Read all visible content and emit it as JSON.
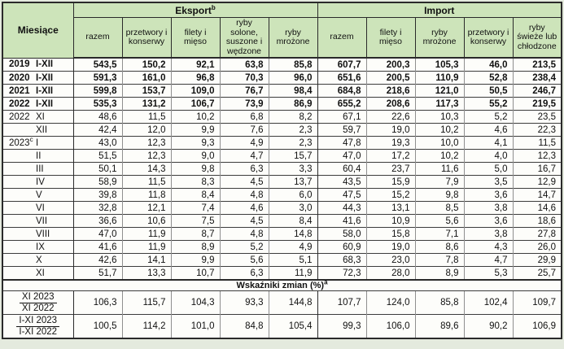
{
  "header": {
    "months_label": "Miesiące",
    "export_label": "Eksport",
    "export_sup": "b",
    "import_label": "Import",
    "export_cols": [
      "razem",
      "przetwory i konserwy",
      "filety i mięso",
      "ryby solone, suszone i wędzone",
      "ryby mrożone"
    ],
    "import_cols": [
      "razem",
      "filety i mięso",
      "ryby mrożone",
      "przetwory i konserwy",
      "ryby świeże lub chłodzone"
    ]
  },
  "rows": [
    {
      "year": "2019",
      "month": "I-XII",
      "bold": true,
      "values": [
        "543,5",
        "150,2",
        "92,1",
        "63,8",
        "85,8",
        "607,7",
        "200,3",
        "105,3",
        "46,0",
        "213,5"
      ]
    },
    {
      "year": "2020",
      "month": "I-XII",
      "bold": true,
      "values": [
        "591,3",
        "161,0",
        "96,8",
        "70,3",
        "96,0",
        "651,6",
        "200,5",
        "110,9",
        "52,8",
        "238,4"
      ]
    },
    {
      "year": "2021",
      "month": "I-XII",
      "bold": true,
      "values": [
        "599,8",
        "153,7",
        "109,0",
        "76,7",
        "98,4",
        "684,8",
        "218,6",
        "121,0",
        "50,5",
        "246,7"
      ]
    },
    {
      "year": "2022",
      "month": "I-XII",
      "bold": true,
      "values": [
        "535,3",
        "131,2",
        "106,7",
        "73,9",
        "86,9",
        "655,2",
        "208,6",
        "117,3",
        "55,2",
        "219,5"
      ]
    },
    {
      "year": "2022",
      "month": "XI",
      "bold": false,
      "values": [
        "48,6",
        "11,5",
        "10,2",
        "6,8",
        "8,2",
        "67,1",
        "22,6",
        "10,3",
        "5,2",
        "23,5"
      ]
    },
    {
      "year": "",
      "month": "XII",
      "bold": false,
      "values": [
        "42,4",
        "12,0",
        "9,9",
        "7,6",
        "2,3",
        "59,7",
        "19,0",
        "10,2",
        "4,6",
        "22,3"
      ]
    },
    {
      "year": "2023",
      "year_sup": "c",
      "month": "I",
      "bold": false,
      "values": [
        "43,0",
        "12,3",
        "9,3",
        "4,9",
        "2,3",
        "47,8",
        "19,3",
        "10,0",
        "4,1",
        "11,5"
      ]
    },
    {
      "year": "",
      "month": "II",
      "bold": false,
      "values": [
        "51,5",
        "12,3",
        "9,0",
        "4,7",
        "15,7",
        "47,0",
        "17,2",
        "10,2",
        "4,0",
        "12,3"
      ]
    },
    {
      "year": "",
      "month": "III",
      "bold": false,
      "values": [
        "50,1",
        "14,3",
        "9,8",
        "6,3",
        "3,3",
        "60,4",
        "23,7",
        "11,6",
        "5,0",
        "16,7"
      ]
    },
    {
      "year": "",
      "month": "IV",
      "bold": false,
      "values": [
        "58,9",
        "11,5",
        "8,3",
        "4,5",
        "13,7",
        "43,5",
        "15,9",
        "7,9",
        "3,5",
        "12,9"
      ]
    },
    {
      "year": "",
      "month": "V",
      "bold": false,
      "values": [
        "39,8",
        "11,8",
        "8,4",
        "4,8",
        "6,0",
        "47,5",
        "15,2",
        "9,8",
        "3,6",
        "14,7"
      ]
    },
    {
      "year": "",
      "month": "VI",
      "bold": false,
      "values": [
        "32,8",
        "12,1",
        "7,4",
        "4,6",
        "3,0",
        "44,3",
        "13,1",
        "8,5",
        "3,8",
        "14,6"
      ]
    },
    {
      "year": "",
      "month": "VII",
      "bold": false,
      "values": [
        "36,6",
        "10,6",
        "7,5",
        "4,5",
        "8,4",
        "41,6",
        "10,9",
        "5,6",
        "3,6",
        "18,6"
      ]
    },
    {
      "year": "",
      "month": "VIII",
      "bold": false,
      "values": [
        "47,0",
        "11,9",
        "8,7",
        "4,8",
        "14,8",
        "58,0",
        "15,8",
        "7,1",
        "3,8",
        "27,8"
      ]
    },
    {
      "year": "",
      "month": "IX",
      "bold": false,
      "values": [
        "41,6",
        "11,9",
        "8,9",
        "5,2",
        "4,9",
        "60,9",
        "19,0",
        "8,6",
        "4,3",
        "26,0"
      ]
    },
    {
      "year": "",
      "month": "X",
      "bold": false,
      "values": [
        "42,6",
        "14,1",
        "9,9",
        "5,6",
        "5,1",
        "68,3",
        "23,0",
        "7,8",
        "4,7",
        "29,9"
      ]
    },
    {
      "year": "",
      "month": "XI",
      "bold": false,
      "values": [
        "51,7",
        "13,3",
        "10,7",
        "6,3",
        "11,9",
        "72,3",
        "28,0",
        "8,9",
        "5,3",
        "25,7"
      ]
    }
  ],
  "indices": {
    "title": "Wskaźniki zmian (%)",
    "title_sup": "a",
    "rows": [
      {
        "numerator": "XI 2023",
        "denominator": "XI 2022",
        "values": [
          "106,3",
          "115,7",
          "104,3",
          "93,3",
          "144,8",
          "107,7",
          "124,0",
          "85,8",
          "102,4",
          "109,7"
        ]
      },
      {
        "numerator": "I-XI 2023",
        "denominator": "I-XI 2022",
        "values": [
          "100,5",
          "114,2",
          "101,0",
          "84,8",
          "105,4",
          "99,3",
          "106,0",
          "89,6",
          "90,2",
          "106,9"
        ]
      }
    ]
  }
}
